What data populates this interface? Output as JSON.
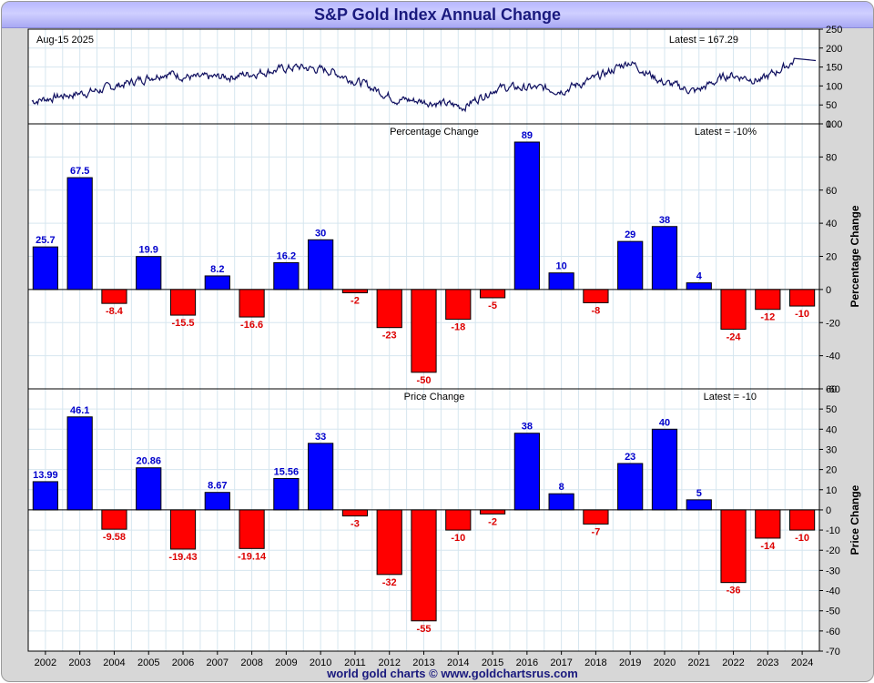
{
  "page": {
    "title": "S&P Gold Index Annual Change",
    "footer": "world gold charts © www.goldchartsrus.com"
  },
  "colors": {
    "positive": "#0000ff",
    "negative": "#ff0000",
    "label_positive": "#0000cc",
    "label_negative": "#dd0000",
    "line": "#101060",
    "grid": "#d6e6ef"
  },
  "chart_data": [
    {
      "type": "line",
      "title": "",
      "date_label": "Aug-15 2025",
      "latest_label": "Latest = 167.29",
      "ylim": [
        0,
        250
      ],
      "yticks": [
        0,
        50,
        100,
        150,
        200,
        250
      ],
      "x": [
        2002,
        2003,
        2004,
        2005,
        2006,
        2007,
        2008,
        2009,
        2010,
        2011,
        2012,
        2013,
        2014,
        2015,
        2016,
        2017,
        2018,
        2019,
        2020,
        2021,
        2022,
        2023,
        2024,
        2025
      ],
      "values": [
        60,
        75,
        88,
        110,
        135,
        120,
        125,
        138,
        150,
        140,
        105,
        65,
        58,
        45,
        95,
        95,
        90,
        120,
        165,
        110,
        85,
        130,
        115,
        167
      ]
    },
    {
      "type": "bar",
      "title": "Percentage Change",
      "latest_label": "Latest = -10%",
      "ylabel": "Percentage Change",
      "ylim": [
        -60,
        100
      ],
      "yticks": [
        -60,
        -40,
        -20,
        0,
        20,
        40,
        60,
        80,
        100
      ],
      "categories": [
        "2002",
        "2003",
        "2004",
        "2005",
        "2006",
        "2007",
        "2008",
        "2009",
        "2010",
        "2011",
        "2012",
        "2013",
        "2014",
        "2015",
        "2016",
        "2017",
        "2018",
        "2019",
        "2020",
        "2021",
        "2022",
        "2023",
        "2024"
      ],
      "values": [
        25.7,
        67.5,
        -8.4,
        19.9,
        -15.5,
        8.2,
        -16.6,
        16.2,
        30,
        -2,
        -23,
        -50,
        -18,
        -5,
        89,
        10,
        -8,
        29,
        38,
        4,
        -24,
        -12,
        -10
      ],
      "labels": [
        "25.7",
        "67.5",
        "-8.4",
        "19.9",
        "-15.5",
        "8.2",
        "-16.6",
        "16.2",
        "30",
        "-2",
        "-23",
        "-50",
        "-18",
        "-5",
        "89",
        "10",
        "-8",
        "29",
        "38",
        "4",
        "-24",
        "-12",
        "-10"
      ]
    },
    {
      "type": "bar",
      "title": "Price Change",
      "latest_label": "Latest = -10",
      "ylabel": "Price Change",
      "ylim": [
        -70,
        60
      ],
      "yticks": [
        -70,
        -60,
        -50,
        -40,
        -30,
        -20,
        -10,
        0,
        10,
        20,
        30,
        40,
        50,
        60
      ],
      "categories": [
        "2002",
        "2003",
        "2004",
        "2005",
        "2006",
        "2007",
        "2008",
        "2009",
        "2010",
        "2011",
        "2012",
        "2013",
        "2014",
        "2015",
        "2016",
        "2017",
        "2018",
        "2019",
        "2020",
        "2021",
        "2022",
        "2023",
        "2024"
      ],
      "values": [
        13.99,
        46.1,
        -9.58,
        20.86,
        -19.43,
        8.67,
        -19.14,
        15.56,
        33,
        -3,
        -32,
        -55,
        -10,
        -2,
        38,
        8,
        -7,
        23,
        40,
        5,
        -36,
        -14,
        -10
      ],
      "labels": [
        "13.99",
        "46.1",
        "-9.58",
        "20.86",
        "-19.43",
        "8.67",
        "-19.14",
        "15.56",
        "33",
        "-3",
        "-32",
        "-55",
        "-10",
        "-2",
        "38",
        "8",
        "-7",
        "23",
        "40",
        "5",
        "-36",
        "-14",
        "-10"
      ]
    }
  ]
}
